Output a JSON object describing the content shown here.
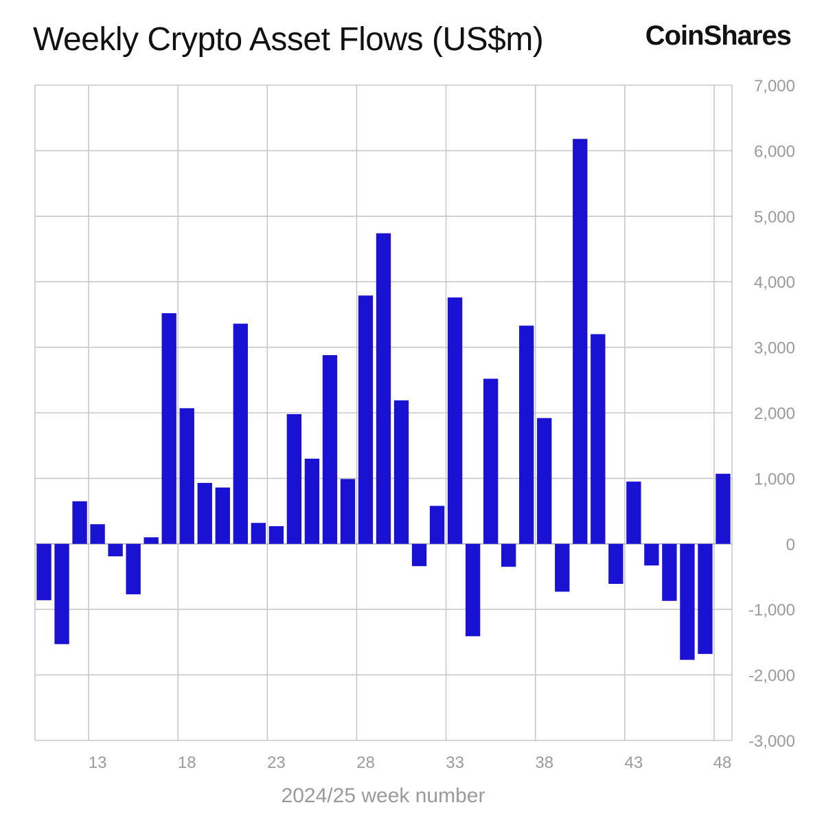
{
  "header": {
    "title": "Weekly Crypto Asset Flows (US$m)",
    "brand": "CoinShares"
  },
  "chart_data": {
    "type": "bar",
    "title": "Weekly Crypto Asset Flows (US$m)",
    "xlabel": "2024/25 week number",
    "ylabel": "",
    "ylim": [
      -3000,
      7000
    ],
    "yticks": [
      7000,
      6000,
      5000,
      4000,
      3000,
      2000,
      1000,
      0,
      -1000,
      -2000,
      -3000
    ],
    "ytick_labels": [
      "7,000",
      "6,000",
      "5,000",
      "4,000",
      "3,000",
      "2,000",
      "1,000",
      "0",
      "-1,000",
      "-2,000",
      "-3,000"
    ],
    "xtick_labels": [
      "13",
      "18",
      "23",
      "28",
      "33",
      "38",
      "43",
      "48"
    ],
    "grid": true,
    "bar_color": "#1a12d2",
    "categories": [
      10,
      11,
      12,
      13,
      14,
      15,
      16,
      17,
      18,
      19,
      20,
      21,
      22,
      23,
      24,
      25,
      26,
      27,
      28,
      29,
      30,
      31,
      32,
      33,
      34,
      35,
      36,
      37,
      38,
      39,
      40,
      41,
      42,
      43,
      44,
      45,
      46,
      47,
      48
    ],
    "values": [
      -860,
      -1530,
      650,
      300,
      -190,
      -770,
      100,
      3520,
      2070,
      930,
      860,
      3360,
      320,
      270,
      1980,
      1300,
      2880,
      990,
      3790,
      4740,
      2190,
      -340,
      580,
      3760,
      -1410,
      2520,
      -350,
      3330,
      1920,
      -730,
      6180,
      3200,
      -610,
      950,
      -330,
      -870,
      -1770,
      -1680,
      1070
    ]
  }
}
